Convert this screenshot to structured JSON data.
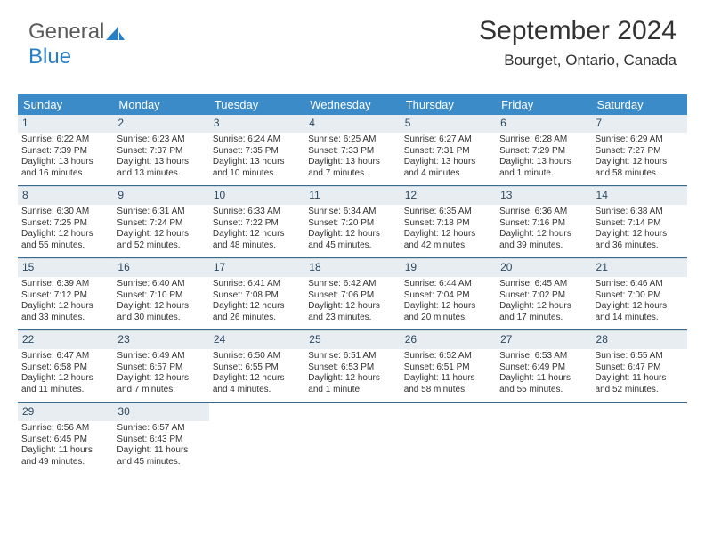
{
  "logo": {
    "grey": "General",
    "blue": "Blue"
  },
  "title": "September 2024",
  "location": "Bourget, Ontario, Canada",
  "dayNames": [
    "Sunday",
    "Monday",
    "Tuesday",
    "Wednesday",
    "Thursday",
    "Friday",
    "Saturday"
  ],
  "colors": {
    "headerBar": "#3b8bc9",
    "dayNumBg": "#e8edf1",
    "rowDivider": "#3b6a8f",
    "text": "#333333"
  },
  "weeks": [
    [
      {
        "n": "1",
        "sr": "Sunrise: 6:22 AM",
        "ss": "Sunset: 7:39 PM",
        "d1": "Daylight: 13 hours",
        "d2": "and 16 minutes."
      },
      {
        "n": "2",
        "sr": "Sunrise: 6:23 AM",
        "ss": "Sunset: 7:37 PM",
        "d1": "Daylight: 13 hours",
        "d2": "and 13 minutes."
      },
      {
        "n": "3",
        "sr": "Sunrise: 6:24 AM",
        "ss": "Sunset: 7:35 PM",
        "d1": "Daylight: 13 hours",
        "d2": "and 10 minutes."
      },
      {
        "n": "4",
        "sr": "Sunrise: 6:25 AM",
        "ss": "Sunset: 7:33 PM",
        "d1": "Daylight: 13 hours",
        "d2": "and 7 minutes."
      },
      {
        "n": "5",
        "sr": "Sunrise: 6:27 AM",
        "ss": "Sunset: 7:31 PM",
        "d1": "Daylight: 13 hours",
        "d2": "and 4 minutes."
      },
      {
        "n": "6",
        "sr": "Sunrise: 6:28 AM",
        "ss": "Sunset: 7:29 PM",
        "d1": "Daylight: 13 hours",
        "d2": "and 1 minute."
      },
      {
        "n": "7",
        "sr": "Sunrise: 6:29 AM",
        "ss": "Sunset: 7:27 PM",
        "d1": "Daylight: 12 hours",
        "d2": "and 58 minutes."
      }
    ],
    [
      {
        "n": "8",
        "sr": "Sunrise: 6:30 AM",
        "ss": "Sunset: 7:25 PM",
        "d1": "Daylight: 12 hours",
        "d2": "and 55 minutes."
      },
      {
        "n": "9",
        "sr": "Sunrise: 6:31 AM",
        "ss": "Sunset: 7:24 PM",
        "d1": "Daylight: 12 hours",
        "d2": "and 52 minutes."
      },
      {
        "n": "10",
        "sr": "Sunrise: 6:33 AM",
        "ss": "Sunset: 7:22 PM",
        "d1": "Daylight: 12 hours",
        "d2": "and 48 minutes."
      },
      {
        "n": "11",
        "sr": "Sunrise: 6:34 AM",
        "ss": "Sunset: 7:20 PM",
        "d1": "Daylight: 12 hours",
        "d2": "and 45 minutes."
      },
      {
        "n": "12",
        "sr": "Sunrise: 6:35 AM",
        "ss": "Sunset: 7:18 PM",
        "d1": "Daylight: 12 hours",
        "d2": "and 42 minutes."
      },
      {
        "n": "13",
        "sr": "Sunrise: 6:36 AM",
        "ss": "Sunset: 7:16 PM",
        "d1": "Daylight: 12 hours",
        "d2": "and 39 minutes."
      },
      {
        "n": "14",
        "sr": "Sunrise: 6:38 AM",
        "ss": "Sunset: 7:14 PM",
        "d1": "Daylight: 12 hours",
        "d2": "and 36 minutes."
      }
    ],
    [
      {
        "n": "15",
        "sr": "Sunrise: 6:39 AM",
        "ss": "Sunset: 7:12 PM",
        "d1": "Daylight: 12 hours",
        "d2": "and 33 minutes."
      },
      {
        "n": "16",
        "sr": "Sunrise: 6:40 AM",
        "ss": "Sunset: 7:10 PM",
        "d1": "Daylight: 12 hours",
        "d2": "and 30 minutes."
      },
      {
        "n": "17",
        "sr": "Sunrise: 6:41 AM",
        "ss": "Sunset: 7:08 PM",
        "d1": "Daylight: 12 hours",
        "d2": "and 26 minutes."
      },
      {
        "n": "18",
        "sr": "Sunrise: 6:42 AM",
        "ss": "Sunset: 7:06 PM",
        "d1": "Daylight: 12 hours",
        "d2": "and 23 minutes."
      },
      {
        "n": "19",
        "sr": "Sunrise: 6:44 AM",
        "ss": "Sunset: 7:04 PM",
        "d1": "Daylight: 12 hours",
        "d2": "and 20 minutes."
      },
      {
        "n": "20",
        "sr": "Sunrise: 6:45 AM",
        "ss": "Sunset: 7:02 PM",
        "d1": "Daylight: 12 hours",
        "d2": "and 17 minutes."
      },
      {
        "n": "21",
        "sr": "Sunrise: 6:46 AM",
        "ss": "Sunset: 7:00 PM",
        "d1": "Daylight: 12 hours",
        "d2": "and 14 minutes."
      }
    ],
    [
      {
        "n": "22",
        "sr": "Sunrise: 6:47 AM",
        "ss": "Sunset: 6:58 PM",
        "d1": "Daylight: 12 hours",
        "d2": "and 11 minutes."
      },
      {
        "n": "23",
        "sr": "Sunrise: 6:49 AM",
        "ss": "Sunset: 6:57 PM",
        "d1": "Daylight: 12 hours",
        "d2": "and 7 minutes."
      },
      {
        "n": "24",
        "sr": "Sunrise: 6:50 AM",
        "ss": "Sunset: 6:55 PM",
        "d1": "Daylight: 12 hours",
        "d2": "and 4 minutes."
      },
      {
        "n": "25",
        "sr": "Sunrise: 6:51 AM",
        "ss": "Sunset: 6:53 PM",
        "d1": "Daylight: 12 hours",
        "d2": "and 1 minute."
      },
      {
        "n": "26",
        "sr": "Sunrise: 6:52 AM",
        "ss": "Sunset: 6:51 PM",
        "d1": "Daylight: 11 hours",
        "d2": "and 58 minutes."
      },
      {
        "n": "27",
        "sr": "Sunrise: 6:53 AM",
        "ss": "Sunset: 6:49 PM",
        "d1": "Daylight: 11 hours",
        "d2": "and 55 minutes."
      },
      {
        "n": "28",
        "sr": "Sunrise: 6:55 AM",
        "ss": "Sunset: 6:47 PM",
        "d1": "Daylight: 11 hours",
        "d2": "and 52 minutes."
      }
    ],
    [
      {
        "n": "29",
        "sr": "Sunrise: 6:56 AM",
        "ss": "Sunset: 6:45 PM",
        "d1": "Daylight: 11 hours",
        "d2": "and 49 minutes."
      },
      {
        "n": "30",
        "sr": "Sunrise: 6:57 AM",
        "ss": "Sunset: 6:43 PM",
        "d1": "Daylight: 11 hours",
        "d2": "and 45 minutes."
      },
      null,
      null,
      null,
      null,
      null
    ]
  ]
}
